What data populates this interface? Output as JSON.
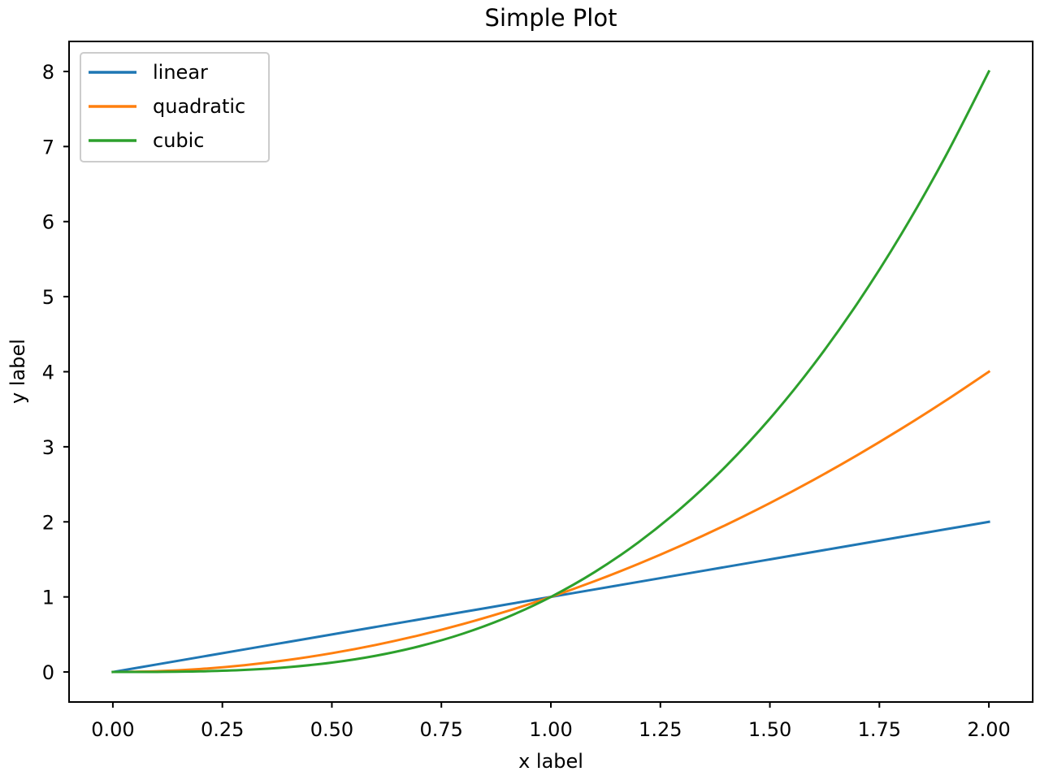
{
  "chart_data": {
    "type": "line",
    "title": "Simple Plot",
    "xlabel": "x label",
    "ylabel": "y label",
    "xlim": [
      -0.1,
      2.1
    ],
    "ylim": [
      -0.4,
      8.4
    ],
    "xticks": [
      0,
      0.25,
      0.5,
      0.75,
      1,
      1.25,
      1.5,
      1.75,
      2
    ],
    "xtick_labels": [
      "0.00",
      "0.25",
      "0.50",
      "0.75",
      "1.00",
      "1.25",
      "1.50",
      "1.75",
      "2.00"
    ],
    "yticks": [
      0,
      1,
      2,
      3,
      4,
      5,
      6,
      7,
      8
    ],
    "ytick_labels": [
      "0",
      "1",
      "2",
      "3",
      "4",
      "5",
      "6",
      "7",
      "8"
    ],
    "grid": false,
    "legend_position": "upper-left",
    "x": [
      0,
      0.1,
      0.2,
      0.3,
      0.4,
      0.5,
      0.6,
      0.7,
      0.8,
      0.9,
      1.0,
      1.1,
      1.2,
      1.3,
      1.4,
      1.5,
      1.6,
      1.7,
      1.8,
      1.9,
      2.0
    ],
    "series": [
      {
        "name": "linear",
        "color": "#1f77b4",
        "values": [
          0,
          0.1,
          0.2,
          0.3,
          0.4,
          0.5,
          0.6,
          0.7,
          0.8,
          0.9,
          1.0,
          1.1,
          1.2,
          1.3,
          1.4,
          1.5,
          1.6,
          1.7,
          1.8,
          1.9,
          2.0
        ]
      },
      {
        "name": "quadratic",
        "color": "#ff7f0e",
        "values": [
          0,
          0.01,
          0.04,
          0.09,
          0.16,
          0.25,
          0.36,
          0.49,
          0.64,
          0.81,
          1.0,
          1.21,
          1.44,
          1.69,
          1.96,
          2.25,
          2.56,
          2.89,
          3.24,
          3.61,
          4.0
        ]
      },
      {
        "name": "cubic",
        "color": "#2ca02c",
        "values": [
          0,
          0.001,
          0.008,
          0.027,
          0.064,
          0.125,
          0.216,
          0.343,
          0.512,
          0.729,
          1.0,
          1.331,
          1.728,
          2.197,
          2.744,
          3.375,
          4.096,
          4.913,
          5.832,
          6.859,
          8.0
        ]
      }
    ]
  }
}
